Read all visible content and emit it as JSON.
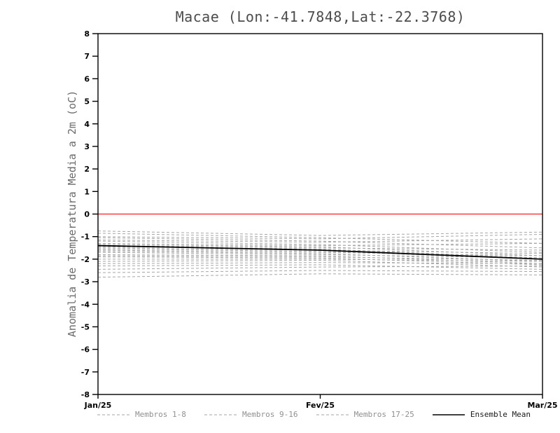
{
  "chart_data": {
    "type": "line",
    "title": "Macae (Lon:-41.7848,Lat:-22.3768)",
    "ylabel": "Anomalia de Temperatura Media a 2m (oC)",
    "xlabel": "",
    "x": [
      0,
      1,
      2
    ],
    "x_tick_labels": [
      "Jan/25",
      "Fev/25",
      "Mar/25"
    ],
    "ylim": [
      -8,
      8
    ],
    "y_ticks": [
      8,
      7,
      6,
      5,
      4,
      3,
      2,
      1,
      0,
      -1,
      -2,
      -3,
      -4,
      -5,
      -6,
      -7,
      -8
    ],
    "grid": false,
    "zero_line": {
      "y": 0,
      "color": "#fa3c3c"
    },
    "member_style": {
      "color": "#a6a6a6",
      "dash": "4 3",
      "width": 1
    },
    "mean_style": {
      "color": "#000000",
      "width": 1.8
    },
    "series": [
      {
        "name": "Membro 1",
        "values": [
          -0.75,
          -0.95,
          -0.8
        ]
      },
      {
        "name": "Membro 2",
        "values": [
          -0.85,
          -1.05,
          -1.3
        ]
      },
      {
        "name": "Membro 3",
        "values": [
          -1.0,
          -1.1,
          -0.9
        ]
      },
      {
        "name": "Membro 4",
        "values": [
          -1.05,
          -1.2,
          -1.5
        ]
      },
      {
        "name": "Membro 5",
        "values": [
          -1.15,
          -1.25,
          -1.1
        ]
      },
      {
        "name": "Membro 6",
        "values": [
          -1.2,
          -1.35,
          -1.7
        ]
      },
      {
        "name": "Membro 7",
        "values": [
          -1.3,
          -1.4,
          -1.3
        ]
      },
      {
        "name": "Membro 8",
        "values": [
          -1.35,
          -1.45,
          -1.85
        ]
      },
      {
        "name": "Membro 9",
        "values": [
          -1.4,
          -1.5,
          -1.6
        ]
      },
      {
        "name": "Membro 10",
        "values": [
          -1.45,
          -1.55,
          -1.95
        ]
      },
      {
        "name": "Membro 11",
        "values": [
          -1.5,
          -1.6,
          -1.75
        ]
      },
      {
        "name": "Membro 12",
        "values": [
          -1.55,
          -1.65,
          -2.0
        ]
      },
      {
        "name": "Membro 13",
        "values": [
          -1.6,
          -1.7,
          -1.85
        ]
      },
      {
        "name": "Membro 14",
        "values": [
          -1.65,
          -1.75,
          -2.1
        ]
      },
      {
        "name": "Membro 15",
        "values": [
          -1.7,
          -1.8,
          -1.95
        ]
      },
      {
        "name": "Membro 16",
        "values": [
          -1.8,
          -1.85,
          -2.2
        ]
      },
      {
        "name": "Membro 17",
        "values": [
          -1.85,
          -1.9,
          -2.05
        ]
      },
      {
        "name": "Membro 18",
        "values": [
          -1.9,
          -1.95,
          -2.25
        ]
      },
      {
        "name": "Membro 19",
        "values": [
          -2.0,
          -2.0,
          -2.1
        ]
      },
      {
        "name": "Membro 20",
        "values": [
          -2.1,
          -2.05,
          -2.35
        ]
      },
      {
        "name": "Membro 21",
        "values": [
          -2.2,
          -2.15,
          -2.2
        ]
      },
      {
        "name": "Membro 22",
        "values": [
          -2.3,
          -2.25,
          -2.45
        ]
      },
      {
        "name": "Membro 23",
        "values": [
          -2.45,
          -2.35,
          -2.3
        ]
      },
      {
        "name": "Membro 24",
        "values": [
          -2.6,
          -2.5,
          -2.55
        ]
      },
      {
        "name": "Membro 25",
        "values": [
          -2.8,
          -2.65,
          -2.7
        ]
      }
    ],
    "ensemble_mean": {
      "name": "Ensemble Mean",
      "values": [
        -1.4,
        -1.6,
        -2.0
      ]
    },
    "legend": [
      {
        "label": "Membros 1-8",
        "line": "dashed",
        "color": "#a6a6a6",
        "text_color": "#909090"
      },
      {
        "label": "Membros 9-16",
        "line": "dashed",
        "color": "#a6a6a6",
        "text_color": "#909090"
      },
      {
        "label": "Membros 17-25",
        "line": "dashed",
        "color": "#a6a6a6",
        "text_color": "#909090"
      },
      {
        "label": "Ensemble Mean",
        "line": "solid",
        "color": "#000000",
        "text_color": "#1a1a1a"
      }
    ],
    "legend_position": "bottom"
  }
}
